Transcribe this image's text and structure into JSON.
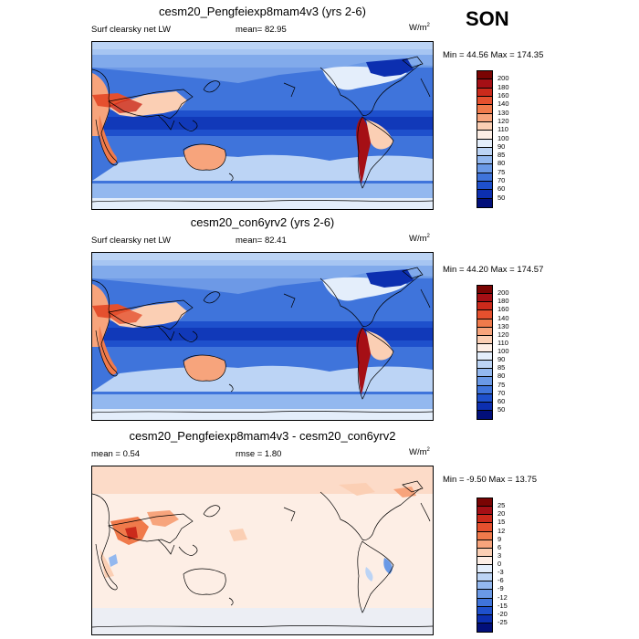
{
  "season": "SON",
  "panels": [
    {
      "title": "cesm20_Pengfeiexp8mam4v3 (yrs 2-6)",
      "left_label": "Surf clearsky net LW",
      "center_label": "mean=  82.95",
      "units": "W/m",
      "units_sup": "2",
      "minmax": "Min =  44.56 Max = 174.35",
      "kind": "field"
    },
    {
      "title": "cesm20_con6yrv2 (yrs 2-6)",
      "left_label": "Surf clearsky net LW",
      "center_label": "mean=  82.41",
      "units": "W/m",
      "units_sup": "2",
      "minmax": "Min =  44.20 Max = 174.57",
      "kind": "field"
    },
    {
      "title": "cesm20_Pengfeiexp8mam4v3 - cesm20_con6yrv2",
      "left_label": "mean =   0.54",
      "center_label": "rmse =   1.80",
      "units": "W/m",
      "units_sup": "2",
      "minmax": "Min =  -9.50 Max =  13.75",
      "kind": "diff"
    }
  ],
  "colorbars": {
    "field": {
      "ticks": [
        "200",
        "180",
        "160",
        "140",
        "130",
        "120",
        "110",
        "100",
        "90",
        "85",
        "80",
        "75",
        "70",
        "60",
        "50"
      ],
      "colors": [
        "#7a0403",
        "#a50f15",
        "#cb2a1b",
        "#e5502e",
        "#f07a4b",
        "#f7a47c",
        "#fbcfb4",
        "#fdeee5",
        "#e4eefb",
        "#bcd4f5",
        "#93b8ef",
        "#6a99e6",
        "#3f74db",
        "#1e50cc",
        "#0c2fb0",
        "#020f7a"
      ]
    },
    "diff": {
      "ticks": [
        "25",
        "20",
        "15",
        "12",
        "9",
        "6",
        "3",
        "0",
        "-3",
        "-6",
        "-9",
        "-12",
        "-15",
        "-20",
        "-25"
      ],
      "colors": [
        "#7a0403",
        "#a50f15",
        "#cb2a1b",
        "#e5502e",
        "#f07a4b",
        "#f7a47c",
        "#fbcfb4",
        "#fdeee5",
        "#e4eefb",
        "#bcd4f5",
        "#93b8ef",
        "#6a99e6",
        "#3f74db",
        "#1e50cc",
        "#0c2fb0",
        "#020f7a"
      ]
    }
  }
}
